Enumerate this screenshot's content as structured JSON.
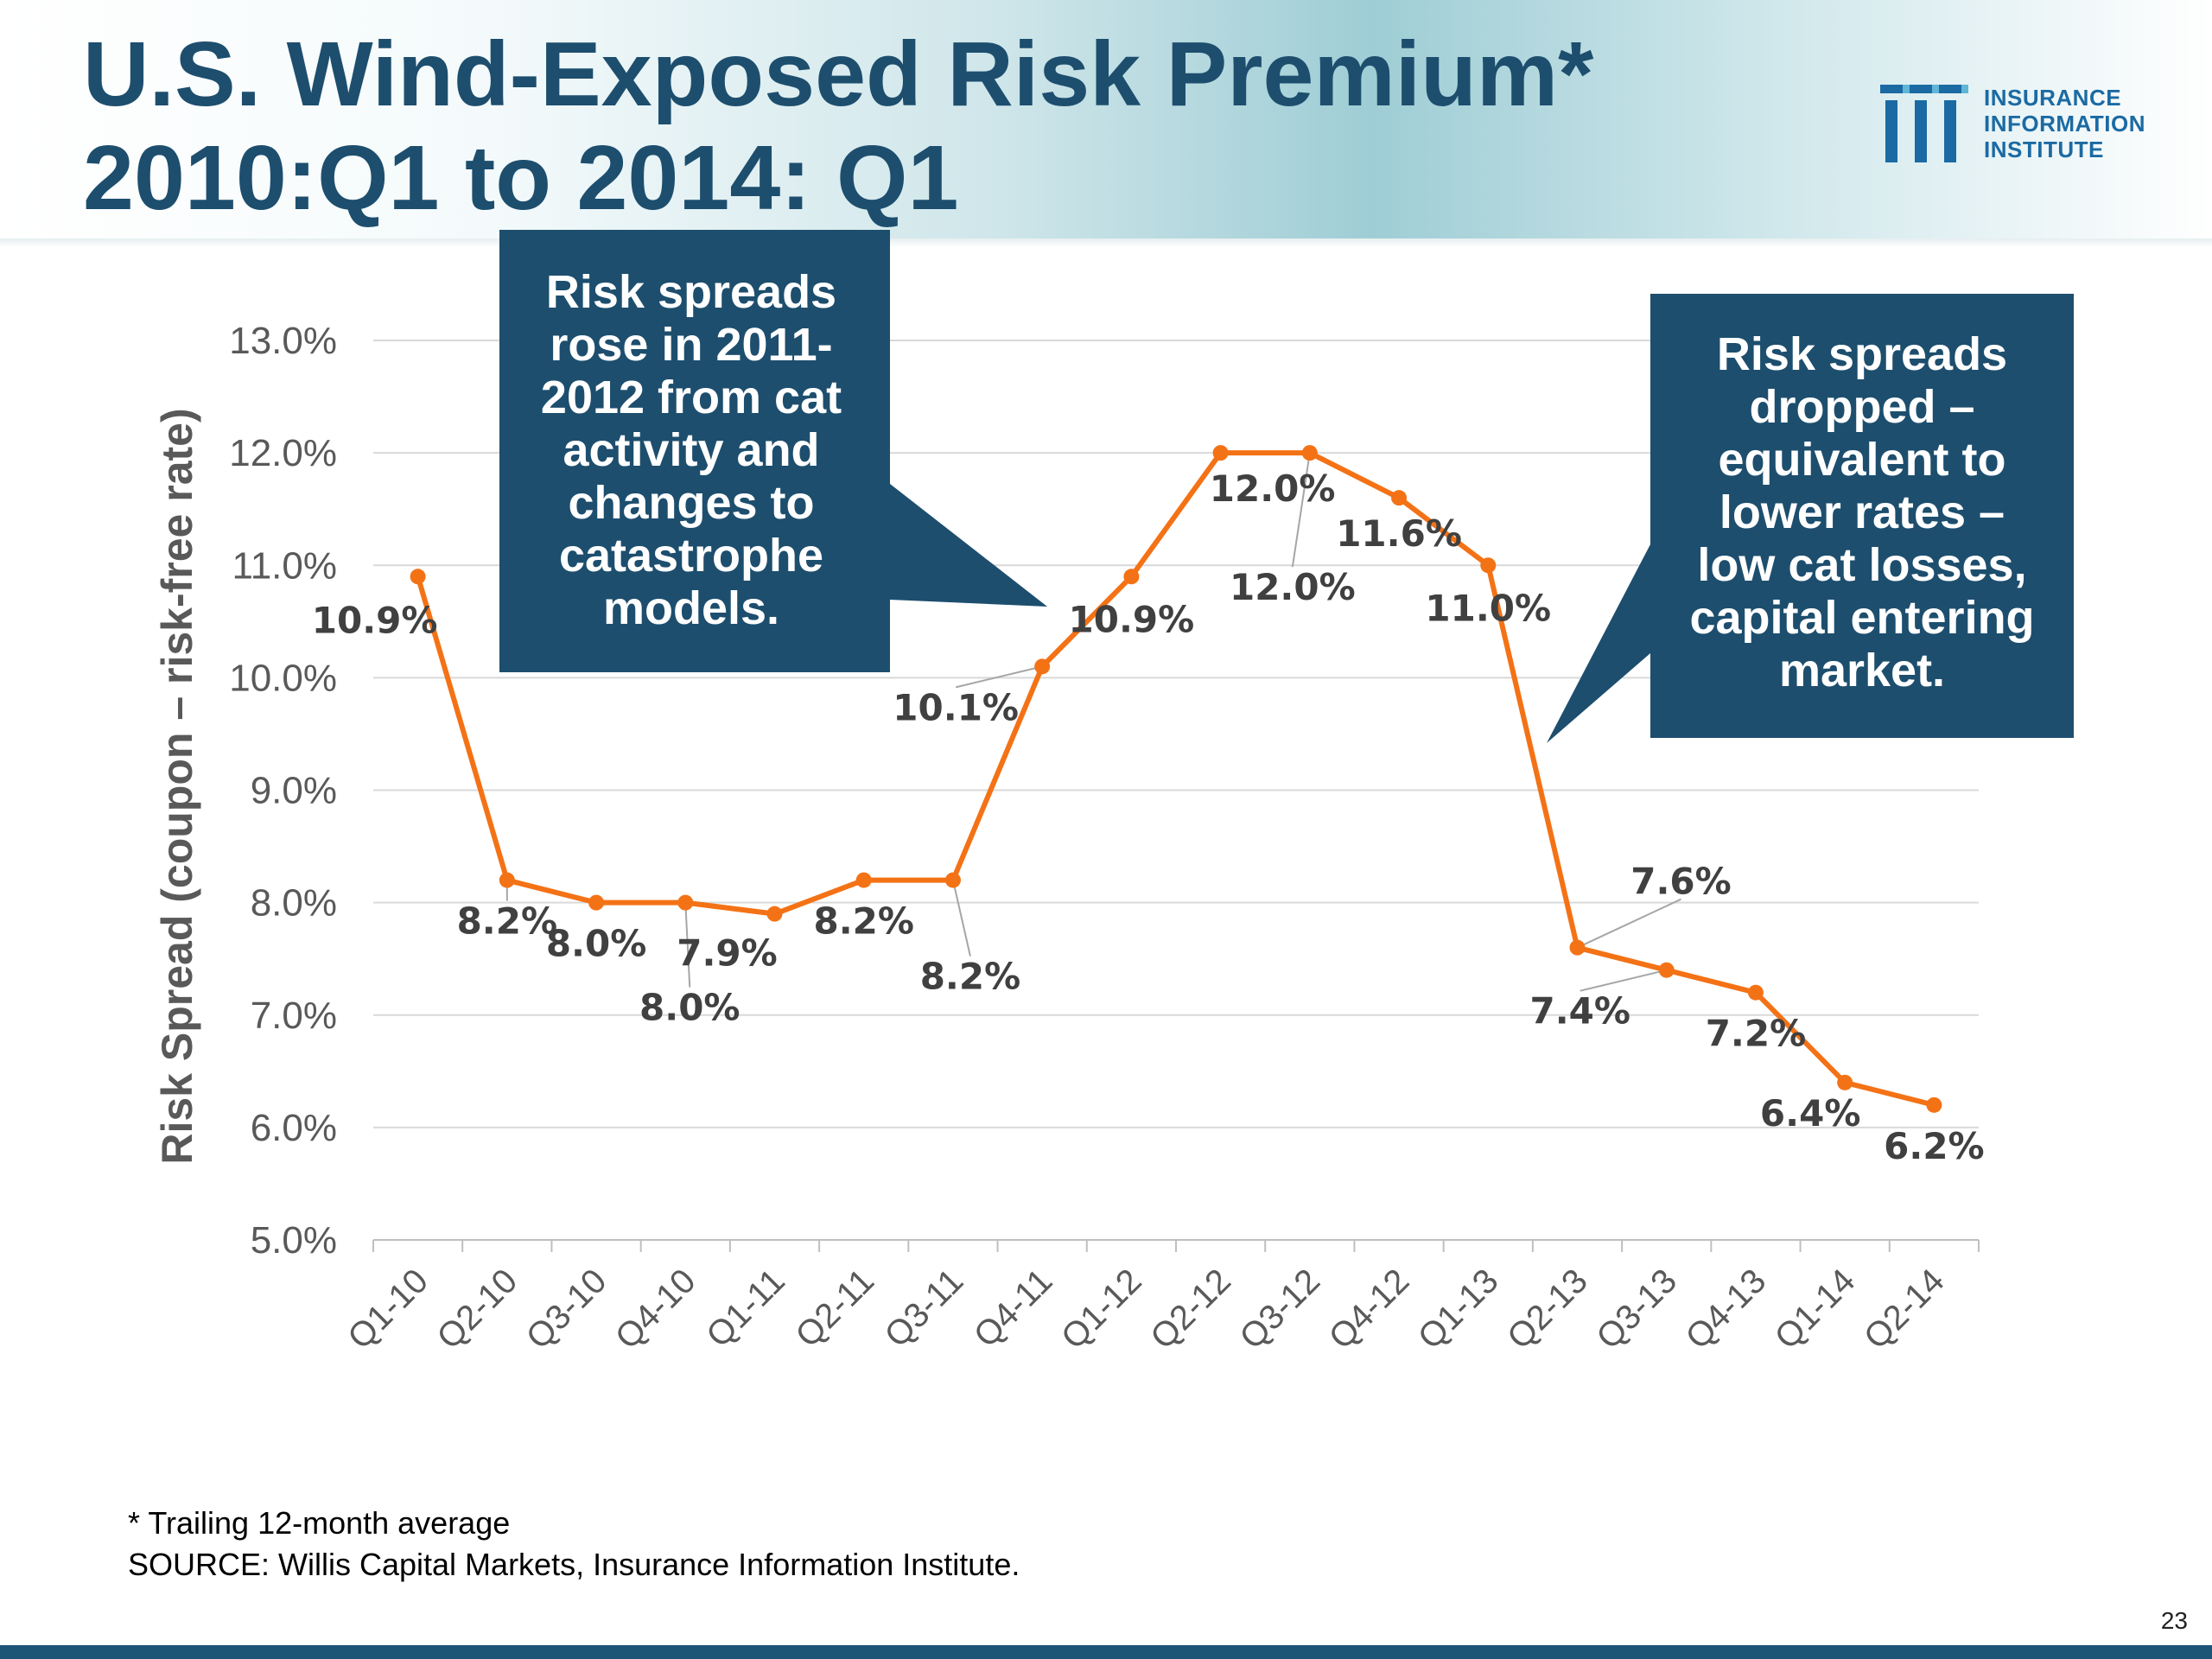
{
  "header": {
    "title_line1": "U.S. Wind-Exposed Risk Premium*",
    "title_line2": "2010:Q1 to 2014: Q1"
  },
  "logo": {
    "lines": [
      "INSURANCE",
      "INFORMATION",
      "INSTITUTE"
    ],
    "color": "#1b6aa3"
  },
  "chart_data": {
    "type": "line",
    "title": "",
    "xlabel": "",
    "ylabel": "Risk Spread (coupon – risk-free rate)",
    "categories": [
      "Q1-10",
      "Q2-10",
      "Q3-10",
      "Q4-10",
      "Q1-11",
      "Q2-11",
      "Q3-11",
      "Q4-11",
      "Q1-12",
      "Q2-12",
      "Q3-12",
      "Q4-12",
      "Q1-13",
      "Q2-13",
      "Q3-13",
      "Q4-13",
      "Q1-14",
      "Q2-14"
    ],
    "series": [
      {
        "values": [
          10.9,
          8.2,
          8.0,
          8.0,
          7.9,
          8.2,
          8.2,
          10.1,
          10.9,
          12.0,
          12.0,
          11.6,
          11.0,
          7.6,
          7.4,
          7.2,
          6.4,
          6.2
        ],
        "color": "#f47216"
      }
    ],
    "data_labels": [
      "10.9%",
      "8.2%",
      "8.0%",
      "8.0%",
      "7.9%",
      "8.2%",
      "8.2%",
      "10.1%",
      "10.9%",
      "12.0%",
      "12.0%",
      "11.6%",
      "11.0%",
      "7.6%",
      "7.4%",
      "7.2%",
      "6.4%",
      "6.2%"
    ],
    "yticks": [
      "5.0%",
      "6.0%",
      "7.0%",
      "8.0%",
      "9.0%",
      "10.0%",
      "11.0%",
      "12.0%",
      "13.0%"
    ],
    "ylim": [
      5.0,
      13.0
    ],
    "grid": true,
    "legend": "none"
  },
  "callouts": {
    "left": "Risk spreads\nrose in 2011-\n2012 from cat\nactivity and\nchanges to\ncatastrophe\nmodels.",
    "right": "Risk spreads\ndropped –\nequivalent to\nlower rates –\nlow cat losses,\ncapital entering\nmarket.",
    "color": "#1d4e6e"
  },
  "footnotes": {
    "note": "* Trailing 12-month average",
    "source": "SOURCE: Willis Capital Markets, Insurance Information Institute."
  },
  "page_number": "23"
}
